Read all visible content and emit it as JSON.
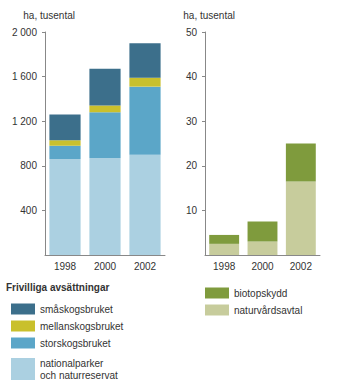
{
  "chart_data": [
    {
      "type": "bar",
      "stacked": true,
      "grid": false,
      "legend": "bottom",
      "y_label": "ha, tusental",
      "legend_title": "Frivilliga avsättningar",
      "categories": [
        "1998",
        "2000",
        "2002"
      ],
      "ylim": [
        0,
        2000
      ],
      "yticks": [
        400,
        800,
        {
          "value": 1200,
          "label": "1 200"
        },
        {
          "value": 1600,
          "label": "1 600"
        },
        {
          "value": 2000,
          "label": "2 000"
        }
      ],
      "series": [
        {
          "name": "nationalparker\noch naturreservat",
          "color": "#abd0e1",
          "values": [
            860,
            870,
            900
          ]
        },
        {
          "name": "storskogsbruket",
          "color": "#5ba6c8",
          "values": [
            120,
            410,
            610
          ]
        },
        {
          "name": "mellanskogsbruket",
          "color": "#c9c02c",
          "values": [
            50,
            60,
            80
          ]
        },
        {
          "name": "småskogsbruket",
          "color": "#3c6f8b",
          "values": [
            230,
            330,
            310
          ]
        }
      ]
    },
    {
      "type": "bar",
      "stacked": true,
      "grid": false,
      "legend": "bottom",
      "y_label": "ha, tusental",
      "categories": [
        "1998",
        "2000",
        "2002"
      ],
      "ylim": [
        0,
        50
      ],
      "yticks": [
        10,
        20,
        30,
        40,
        50
      ],
      "series": [
        {
          "name": "naturvårdsavtal",
          "color": "#c7cc9c",
          "values": [
            2.5,
            3,
            16.5
          ]
        },
        {
          "name": "biotopskydd",
          "color": "#7f9b3d",
          "values": [
            2,
            4.5,
            8.5
          ]
        }
      ]
    }
  ]
}
